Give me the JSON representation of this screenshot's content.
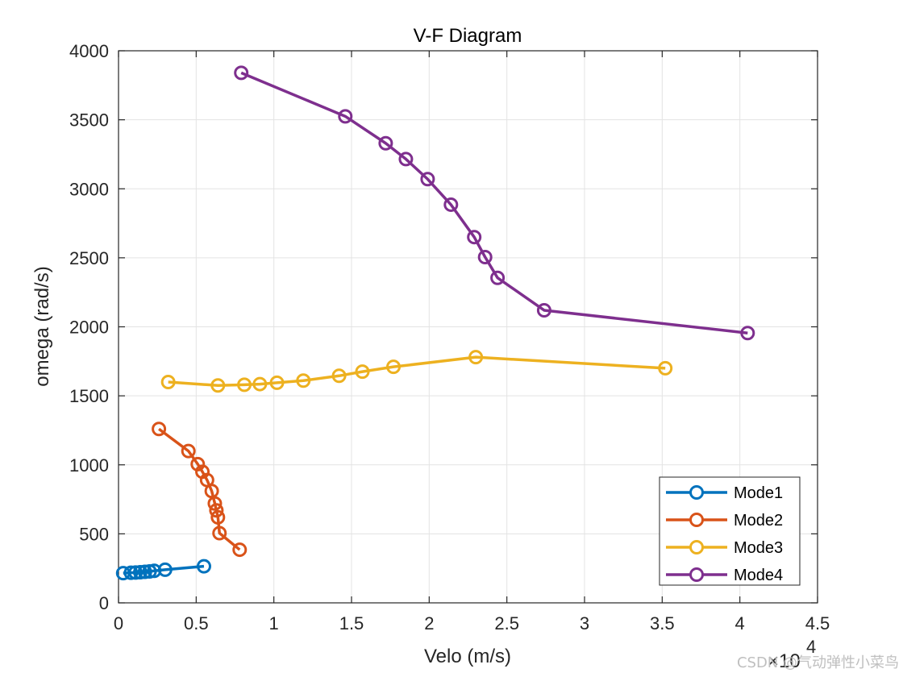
{
  "chart_data": {
    "type": "line",
    "title": "V-F Diagram",
    "xlabel": "Velo (m/s)",
    "ylabel": "omega (rad/s)",
    "x_scale_label": "×10",
    "x_scale_exponent": "4",
    "xlim": [
      0,
      4.5
    ],
    "ylim": [
      0,
      4000
    ],
    "xticks": [
      0,
      0.5,
      1,
      1.5,
      2,
      2.5,
      3,
      3.5,
      4,
      4.5
    ],
    "xtick_labels": [
      "0",
      "0.5",
      "1",
      "1.5",
      "2",
      "2.5",
      "3",
      "3.5",
      "4",
      "4.5"
    ],
    "yticks": [
      0,
      500,
      1000,
      1500,
      2000,
      2500,
      3000,
      3500,
      4000
    ],
    "ytick_labels": [
      "0",
      "500",
      "1000",
      "1500",
      "2000",
      "2500",
      "3000",
      "3500",
      "4000"
    ],
    "grid": true,
    "legend_position": "bottom-right",
    "series": [
      {
        "name": "Mode1",
        "color": "#0072BD",
        "x": [
          0.03,
          0.08,
          0.11,
          0.14,
          0.17,
          0.2,
          0.23,
          0.3,
          0.55
        ],
        "y": [
          215,
          218,
          220,
          222,
          225,
          228,
          232,
          240,
          265
        ]
      },
      {
        "name": "Mode2",
        "color": "#D95319",
        "x": [
          0.26,
          0.45,
          0.51,
          0.54,
          0.57,
          0.6,
          0.62,
          0.63,
          0.64,
          0.65,
          0.78
        ],
        "y": [
          1260,
          1100,
          1005,
          950,
          890,
          810,
          720,
          670,
          620,
          505,
          385
        ]
      },
      {
        "name": "Mode3",
        "color": "#EDB120",
        "x": [
          0.32,
          0.64,
          0.81,
          0.91,
          1.02,
          1.19,
          1.42,
          1.57,
          1.77,
          2.3,
          3.52
        ],
        "y": [
          1600,
          1575,
          1580,
          1585,
          1595,
          1610,
          1645,
          1675,
          1710,
          1780,
          1700
        ]
      },
      {
        "name": "Mode4",
        "color": "#7E2F8E",
        "x": [
          0.79,
          1.46,
          1.72,
          1.85,
          1.99,
          2.14,
          2.29,
          2.36,
          2.44,
          2.74,
          4.05
        ],
        "y": [
          3840,
          3525,
          3330,
          3215,
          3070,
          2885,
          2650,
          2505,
          2355,
          2120,
          1955
        ]
      }
    ]
  },
  "watermark": "CSDN @气动弹性小菜鸟"
}
